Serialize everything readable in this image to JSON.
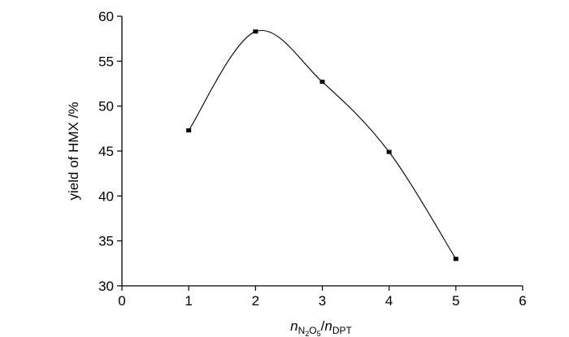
{
  "chart_data": {
    "type": "scatter",
    "x": [
      1,
      2,
      3,
      4,
      5
    ],
    "y": [
      47.3,
      58.3,
      52.7,
      44.9,
      33.0
    ],
    "xlim": [
      0,
      6
    ],
    "ylim": [
      30,
      60
    ],
    "xticks": [
      "0",
      "1",
      "2",
      "3",
      "4",
      "5",
      "6"
    ],
    "yticks": [
      "30",
      "35",
      "40",
      "45",
      "50",
      "55",
      "60"
    ],
    "ylabel": "yield of HMX /%",
    "xlabel": {
      "n1": "n",
      "sub1_a": "N",
      "sub1_b": "2",
      "sub1_c": "O",
      "sub1_d": "5",
      "slash": "/",
      "n2": "n",
      "sub2": "DPT"
    },
    "fit_curve": true,
    "grid": false,
    "legend": "none"
  }
}
